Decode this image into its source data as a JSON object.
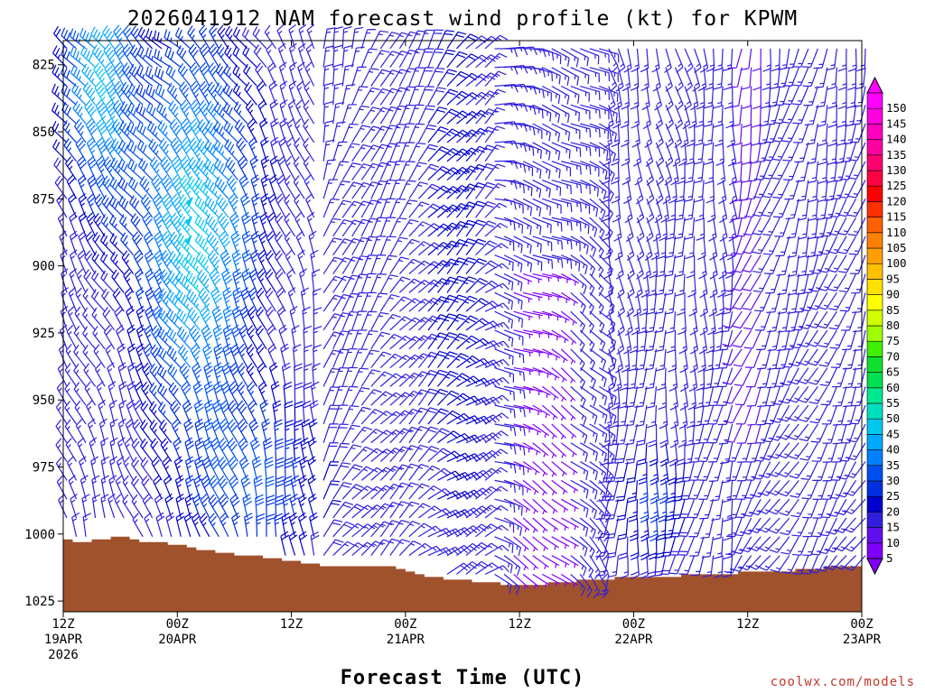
{
  "chart_data": {
    "type": "wind-barb-profile",
    "title": "2026041912 NAM forecast wind profile (kt) for KPWM",
    "xlabel": "Forecast Time (UTC)",
    "ylabel": "",
    "credit": "coolwx.com/models",
    "y_axis": {
      "unit": "hPa",
      "reversed": true,
      "range": [
        816,
        1029
      ],
      "ticks": [
        825,
        850,
        875,
        900,
        925,
        950,
        975,
        1000,
        1025
      ]
    },
    "x_axis": {
      "unit": "hours from 2026-04-19 12Z",
      "range": [
        0,
        84
      ],
      "ticks": [
        {
          "hour": 0,
          "lines": [
            "12Z",
            "19APR",
            "2026"
          ]
        },
        {
          "hour": 12,
          "lines": [
            "00Z",
            "20APR"
          ]
        },
        {
          "hour": 24,
          "lines": [
            "12Z"
          ]
        },
        {
          "hour": 36,
          "lines": [
            "00Z",
            "21APR"
          ]
        },
        {
          "hour": 48,
          "lines": [
            "12Z"
          ]
        },
        {
          "hour": 60,
          "lines": [
            "00Z",
            "22APR"
          ]
        },
        {
          "hour": 72,
          "lines": [
            "12Z"
          ]
        },
        {
          "hour": 84,
          "lines": [
            "00Z",
            "23APR"
          ]
        }
      ]
    },
    "surface_pressure": {
      "color": "#a0522d",
      "hours": [
        0,
        1,
        2,
        3,
        4,
        5,
        6,
        7,
        8,
        9,
        10,
        11,
        12,
        13,
        14,
        15,
        16,
        17,
        18,
        19,
        20,
        21,
        22,
        23,
        24,
        25,
        26,
        27,
        28,
        29,
        30,
        31,
        32,
        33,
        34,
        35,
        36,
        37,
        38,
        39,
        40,
        41,
        42,
        43,
        44,
        45,
        46,
        47,
        48,
        49,
        50,
        51,
        52,
        53,
        54,
        55,
        56,
        57,
        58,
        59,
        60,
        61,
        62,
        63,
        64,
        65,
        66,
        67,
        68,
        69,
        70,
        71,
        72,
        73,
        74,
        75,
        76,
        77,
        78,
        79,
        80,
        81,
        82,
        83,
        84
      ],
      "values": [
        1002,
        1003,
        1003,
        1002,
        1002,
        1001,
        1001,
        1002,
        1003,
        1003,
        1003,
        1004,
        1004,
        1005,
        1006,
        1006,
        1007,
        1007,
        1008,
        1008,
        1008,
        1009,
        1009,
        1010,
        1010,
        1011,
        1011,
        1012,
        1012,
        1012,
        1012,
        1012,
        1012,
        1012,
        1012,
        1013,
        1014,
        1015,
        1016,
        1016,
        1017,
        1017,
        1017,
        1018,
        1018,
        1018,
        1019,
        1019,
        1019,
        1019,
        1019,
        1018,
        1018,
        1018,
        1017,
        1017,
        1017,
        1017,
        1016,
        1016,
        1016,
        1016,
        1016,
        1016,
        1016,
        1015,
        1015,
        1015,
        1015,
        1015,
        1015,
        1014,
        1014,
        1014,
        1014,
        1014,
        1014,
        1013,
        1013,
        1013,
        1012,
        1012,
        1012,
        1012,
        1012
      ]
    },
    "wind_field": {
      "hours": [
        0,
        84
      ],
      "time_step_hours": 1,
      "pressure_levels_hPa": [
        819,
        826,
        833,
        840,
        847,
        854,
        861,
        868,
        875,
        882,
        889,
        896,
        903,
        910,
        917,
        924,
        931,
        938,
        945,
        952,
        959,
        966,
        973,
        980,
        987,
        994,
        1001,
        1008,
        1015,
        1022
      ],
      "spd_model": {
        "base": 15,
        "events": [
          {
            "center": [
              4,
              835
            ],
            "width": [
              3.5,
              45
            ],
            "amp": 30
          },
          {
            "center": [
              14,
              890
            ],
            "width": [
              6,
              70
            ],
            "amp": 33
          },
          {
            "center": [
              20,
              985
            ],
            "width": [
              7,
              30
            ],
            "amp": 15
          },
          {
            "center": [
              40,
              900
            ],
            "width": [
              3,
              120
            ],
            "amp": 10
          },
          {
            "center": [
              62,
              985
            ],
            "width": [
              4,
              22
            ],
            "amp": 12
          }
        ],
        "calm_zones": [
          {
            "h": [
              47,
              52
            ],
            "p": [
              900,
              1025
            ],
            "factor": 0.35
          },
          {
            "h": [
              71,
              73
            ],
            "p": [
              816,
              960
            ],
            "factor": 0.7
          }
        ]
      },
      "dir_model": {
        "segments": [
          {
            "h": [
              0,
              10
            ],
            "from_deg": 330
          },
          {
            "h": [
              10,
              26
            ],
            "from_deg": 320
          },
          {
            "h": [
              26,
              44
            ],
            "from_deg": 20
          },
          {
            "h": [
              44,
              56
            ],
            "from_deg": 100
          },
          {
            "h": [
              56,
              70
            ],
            "from_deg": 170
          },
          {
            "h": [
              70,
              84
            ],
            "from_deg": 200
          }
        ]
      }
    },
    "colorbar": {
      "unit": "kt",
      "labels": [
        5,
        10,
        15,
        20,
        25,
        30,
        35,
        40,
        45,
        50,
        55,
        60,
        65,
        70,
        75,
        80,
        85,
        90,
        95,
        100,
        105,
        110,
        115,
        120,
        125,
        130,
        135,
        140,
        145,
        150
      ],
      "colors": [
        "#7f00ff",
        "#6010ee",
        "#3020dd",
        "#0000cc",
        "#0030e0",
        "#0050f0",
        "#0080ff",
        "#00a8ff",
        "#00c8ee",
        "#00e0c0",
        "#00e890",
        "#00e050",
        "#10e030",
        "#40ee00",
        "#a0ff00",
        "#d0ff00",
        "#ffff00",
        "#ffe000",
        "#ffc000",
        "#ffa000",
        "#ff8000",
        "#ff6000",
        "#ff3000",
        "#ff0000",
        "#ff0040",
        "#ff0070",
        "#ff00a0",
        "#ff00c0",
        "#ff00e0",
        "#ff00ff"
      ]
    }
  }
}
